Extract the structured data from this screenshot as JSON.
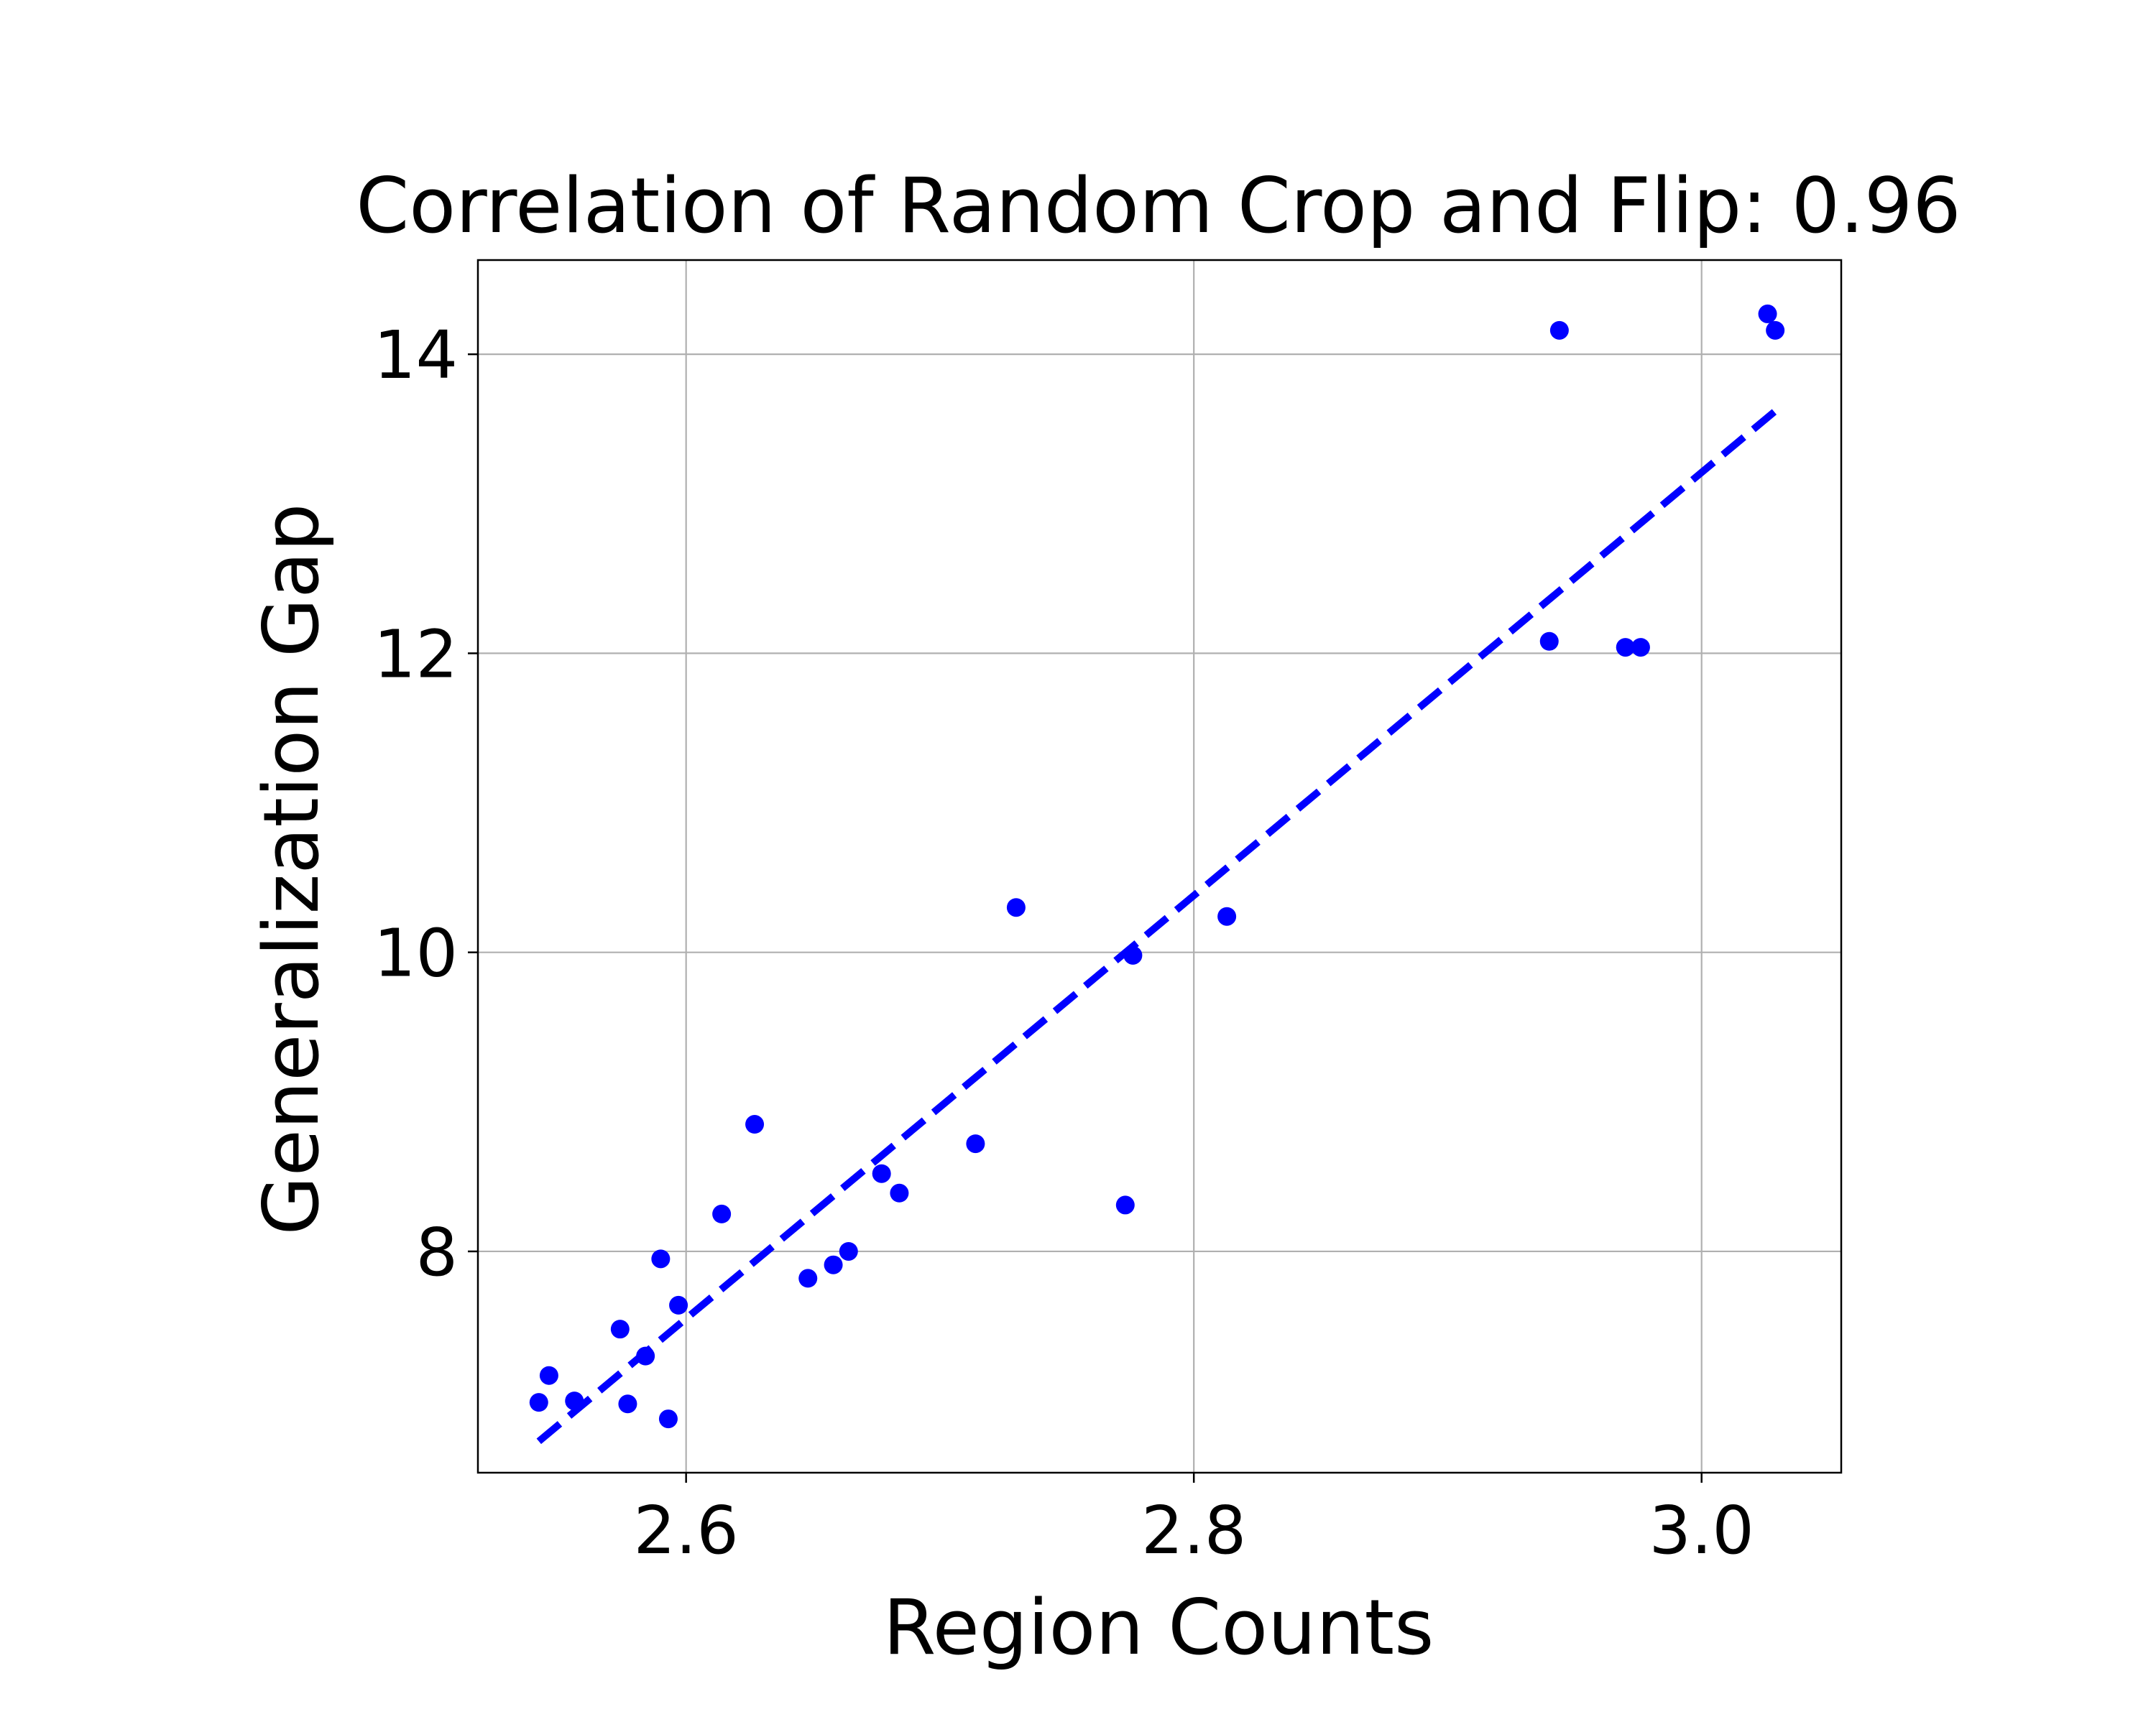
{
  "chart_data": {
    "type": "scatter",
    "title": "Correlation of Random Crop and Flip: 0.96",
    "xlabel": "Region Counts",
    "ylabel": "Generalization Gap",
    "xlim": [
      2.518,
      3.055
    ],
    "ylim": [
      6.52,
      14.63
    ],
    "xticks": [
      2.6,
      2.8,
      3.0
    ],
    "xtick_labels": [
      "2.6",
      "2.8",
      "3.0"
    ],
    "yticks": [
      8,
      10,
      12,
      14
    ],
    "ytick_labels": [
      "8",
      "10",
      "12",
      "14"
    ],
    "grid": true,
    "legend": "none",
    "point_color": "#0000ff",
    "line_color": "#0000ff",
    "points": [
      {
        "x": 2.542,
        "y": 6.99
      },
      {
        "x": 2.546,
        "y": 7.17
      },
      {
        "x": 2.556,
        "y": 7.0
      },
      {
        "x": 2.574,
        "y": 7.48
      },
      {
        "x": 2.577,
        "y": 6.98
      },
      {
        "x": 2.584,
        "y": 7.3
      },
      {
        "x": 2.59,
        "y": 7.95
      },
      {
        "x": 2.593,
        "y": 6.88
      },
      {
        "x": 2.597,
        "y": 7.64
      },
      {
        "x": 2.614,
        "y": 8.25
      },
      {
        "x": 2.627,
        "y": 8.85
      },
      {
        "x": 2.648,
        "y": 7.82
      },
      {
        "x": 2.658,
        "y": 7.91
      },
      {
        "x": 2.664,
        "y": 8.0
      },
      {
        "x": 2.677,
        "y": 8.52
      },
      {
        "x": 2.684,
        "y": 8.39
      },
      {
        "x": 2.714,
        "y": 8.72
      },
      {
        "x": 2.73,
        "y": 10.3
      },
      {
        "x": 2.773,
        "y": 8.31
      },
      {
        "x": 2.776,
        "y": 9.98
      },
      {
        "x": 2.813,
        "y": 10.24
      },
      {
        "x": 2.94,
        "y": 12.08
      },
      {
        "x": 2.944,
        "y": 14.16
      },
      {
        "x": 2.97,
        "y": 12.04
      },
      {
        "x": 2.976,
        "y": 12.04
      },
      {
        "x": 3.026,
        "y": 14.27
      },
      {
        "x": 3.029,
        "y": 14.16
      }
    ],
    "trendline": {
      "style": "dashed",
      "x": [
        2.542,
        3.029
      ],
      "y": [
        6.73,
        13.62
      ]
    }
  }
}
